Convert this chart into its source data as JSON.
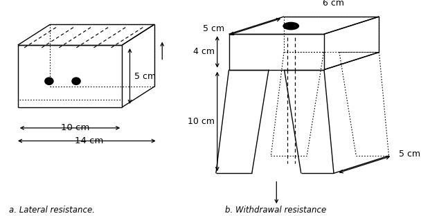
{
  "bg_color": "#ffffff",
  "label_a": "a. Lateral resistance.",
  "label_b": "b. Withdrawal resistance",
  "dim_5cm_a": "5 cm",
  "dim_10cm": "10 cm",
  "dim_14cm": "14 cm",
  "dim_5cm_b_top": "5 cm",
  "dim_6cm": "6 cm",
  "dim_4cm": "4 cm",
  "dim_10cm_b": "10 cm",
  "dim_5cm_b_bot": "5 cm"
}
